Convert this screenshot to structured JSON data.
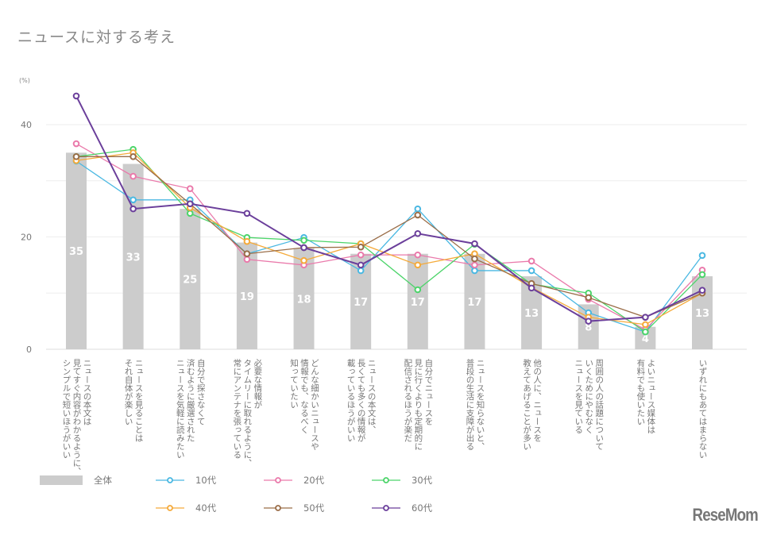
{
  "title": "ニュースに対する考え",
  "logo_text": "ReseMom",
  "chart_data": {
    "type": "bar+line",
    "ylabel": "(%)",
    "ylim": [
      0,
      47
    ],
    "yticks": [
      0,
      20,
      40
    ],
    "grid": true,
    "legend_position": "bottom",
    "categories": [
      "ニュースの本文は\n見てすぐ内容がわかるように、\nシンプルで短いほうがいい",
      "ニュースを見ることは\nそれ自体が楽しい",
      "自分で探さなくて\n済むように厳選された\nニュースを気軽に読みたい",
      "必要な情報が\nタイムリーに取れるように、\n常にアンテナを張っている",
      "どんな細かいニュースや\n情報でも、なるべく\n知っていたい",
      "ニュースの本文は、\n長くても多くの情報が\n載っているほうがいい",
      "自分でニュースを\n見に行くよりも定期的に\n配信されるほうが楽だ",
      "ニュースを知らないと、\n普段の生活に支障が出る",
      "他の人に、ニュースを\n教えてあげることが多い",
      "周囲の人の話題について\nいくためにやむなく\nニュースを見ている",
      "よいニュース媒体は\n有料でも使いたい",
      "いずれにもあてはまらない"
    ],
    "bar_series": {
      "name": "全体",
      "color": "#cccccc",
      "values": [
        35,
        33,
        25,
        19,
        18,
        17,
        17,
        17,
        13,
        8,
        4,
        13
      ]
    },
    "series": [
      {
        "name": "10代",
        "color": "#4ab8e2",
        "values": [
          33.5,
          26.6,
          26.6,
          17,
          19.9,
          14,
          25,
          14,
          14,
          6.5,
          3.1,
          16.7
        ]
      },
      {
        "name": "20代",
        "color": "#ea7aab",
        "values": [
          36.6,
          30.8,
          28.6,
          16,
          15,
          16.8,
          16.8,
          15,
          15.7,
          8.9,
          3.5,
          14.1
        ]
      },
      {
        "name": "30代",
        "color": "#4cd46a",
        "values": [
          34.3,
          35.6,
          24.2,
          19.9,
          19.4,
          18.8,
          10.6,
          18.7,
          11.6,
          10,
          3.1,
          13.3
        ]
      },
      {
        "name": "40代",
        "color": "#f5aa3a",
        "values": [
          33.6,
          35,
          25.2,
          19.2,
          15.8,
          18.8,
          15,
          17,
          11,
          5.7,
          4.4,
          10
        ]
      },
      {
        "name": "50代",
        "color": "#9a6d48",
        "values": [
          34.3,
          34.3,
          25.9,
          17,
          18.1,
          18.2,
          23.9,
          16.1,
          11.7,
          9.2,
          5.7,
          10
        ]
      },
      {
        "name": "60代",
        "color": "#6b3f9b",
        "values": [
          45.1,
          25,
          25.9,
          24.2,
          18.1,
          15,
          20.6,
          18.8,
          10.9,
          5,
          5.7,
          10.5
        ]
      }
    ]
  }
}
